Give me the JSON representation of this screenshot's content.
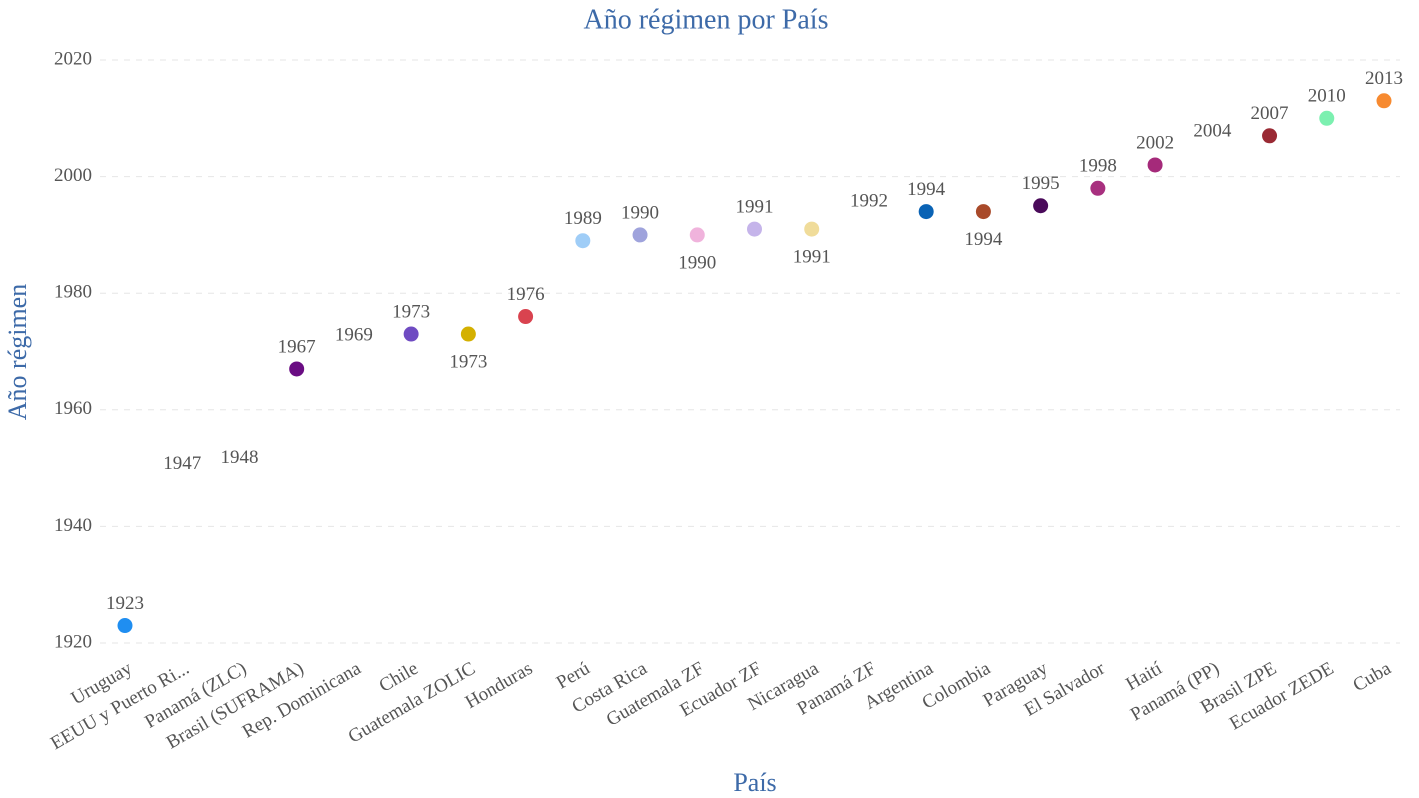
{
  "chart_data": {
    "type": "scatter",
    "title": "Año régimen por País",
    "xlabel": "País",
    "ylabel": "Año régimen",
    "categories": [
      "Uruguay",
      "EEUU y Puerto Ri...",
      "Panamá (ZLC)",
      "Brasil (SUFRAMA)",
      "Rep. Dominicana",
      "Chile",
      "Guatemala ZOLIC",
      "Honduras",
      "Perú",
      "Costa Rica",
      "Guatemala ZF",
      "Ecuador ZF",
      "Nicaragua",
      "Panamá ZF",
      "Argentina",
      "Colombia",
      "Paraguay",
      "El Salvador",
      "Haití",
      "Panamá (PP)",
      "Brasil ZPE",
      "Ecuador ZEDE",
      "Cuba"
    ],
    "values": [
      1923,
      1947,
      1948,
      1967,
      1969,
      1973,
      1973,
      1976,
      1989,
      1990,
      1990,
      1991,
      1991,
      1992,
      1994,
      1994,
      1995,
      1998,
      2002,
      2004,
      2007,
      2010,
      2013
    ],
    "colors": [
      "#1f8ef1",
      "#ffffff",
      "#ffffff",
      "#6a0d83",
      "#ffffff",
      "#6f4bc2",
      "#d4b000",
      "#d9434f",
      "#9fcdf7",
      "#9fa3dc",
      "#f0b3dc",
      "#c5b4ea",
      "#f0dc9a",
      "#ffffff",
      "#0a63b5",
      "#a94a2a",
      "#4a0a5a",
      "#a8307f",
      "#a52a7a",
      "#ffffff",
      "#9a2a34",
      "#7cf0b0",
      "#f78a30"
    ],
    "ylim": [
      1920,
      2020
    ],
    "yticks": [
      1920,
      1940,
      1960,
      1980,
      2000,
      2020
    ],
    "grid": true
  }
}
